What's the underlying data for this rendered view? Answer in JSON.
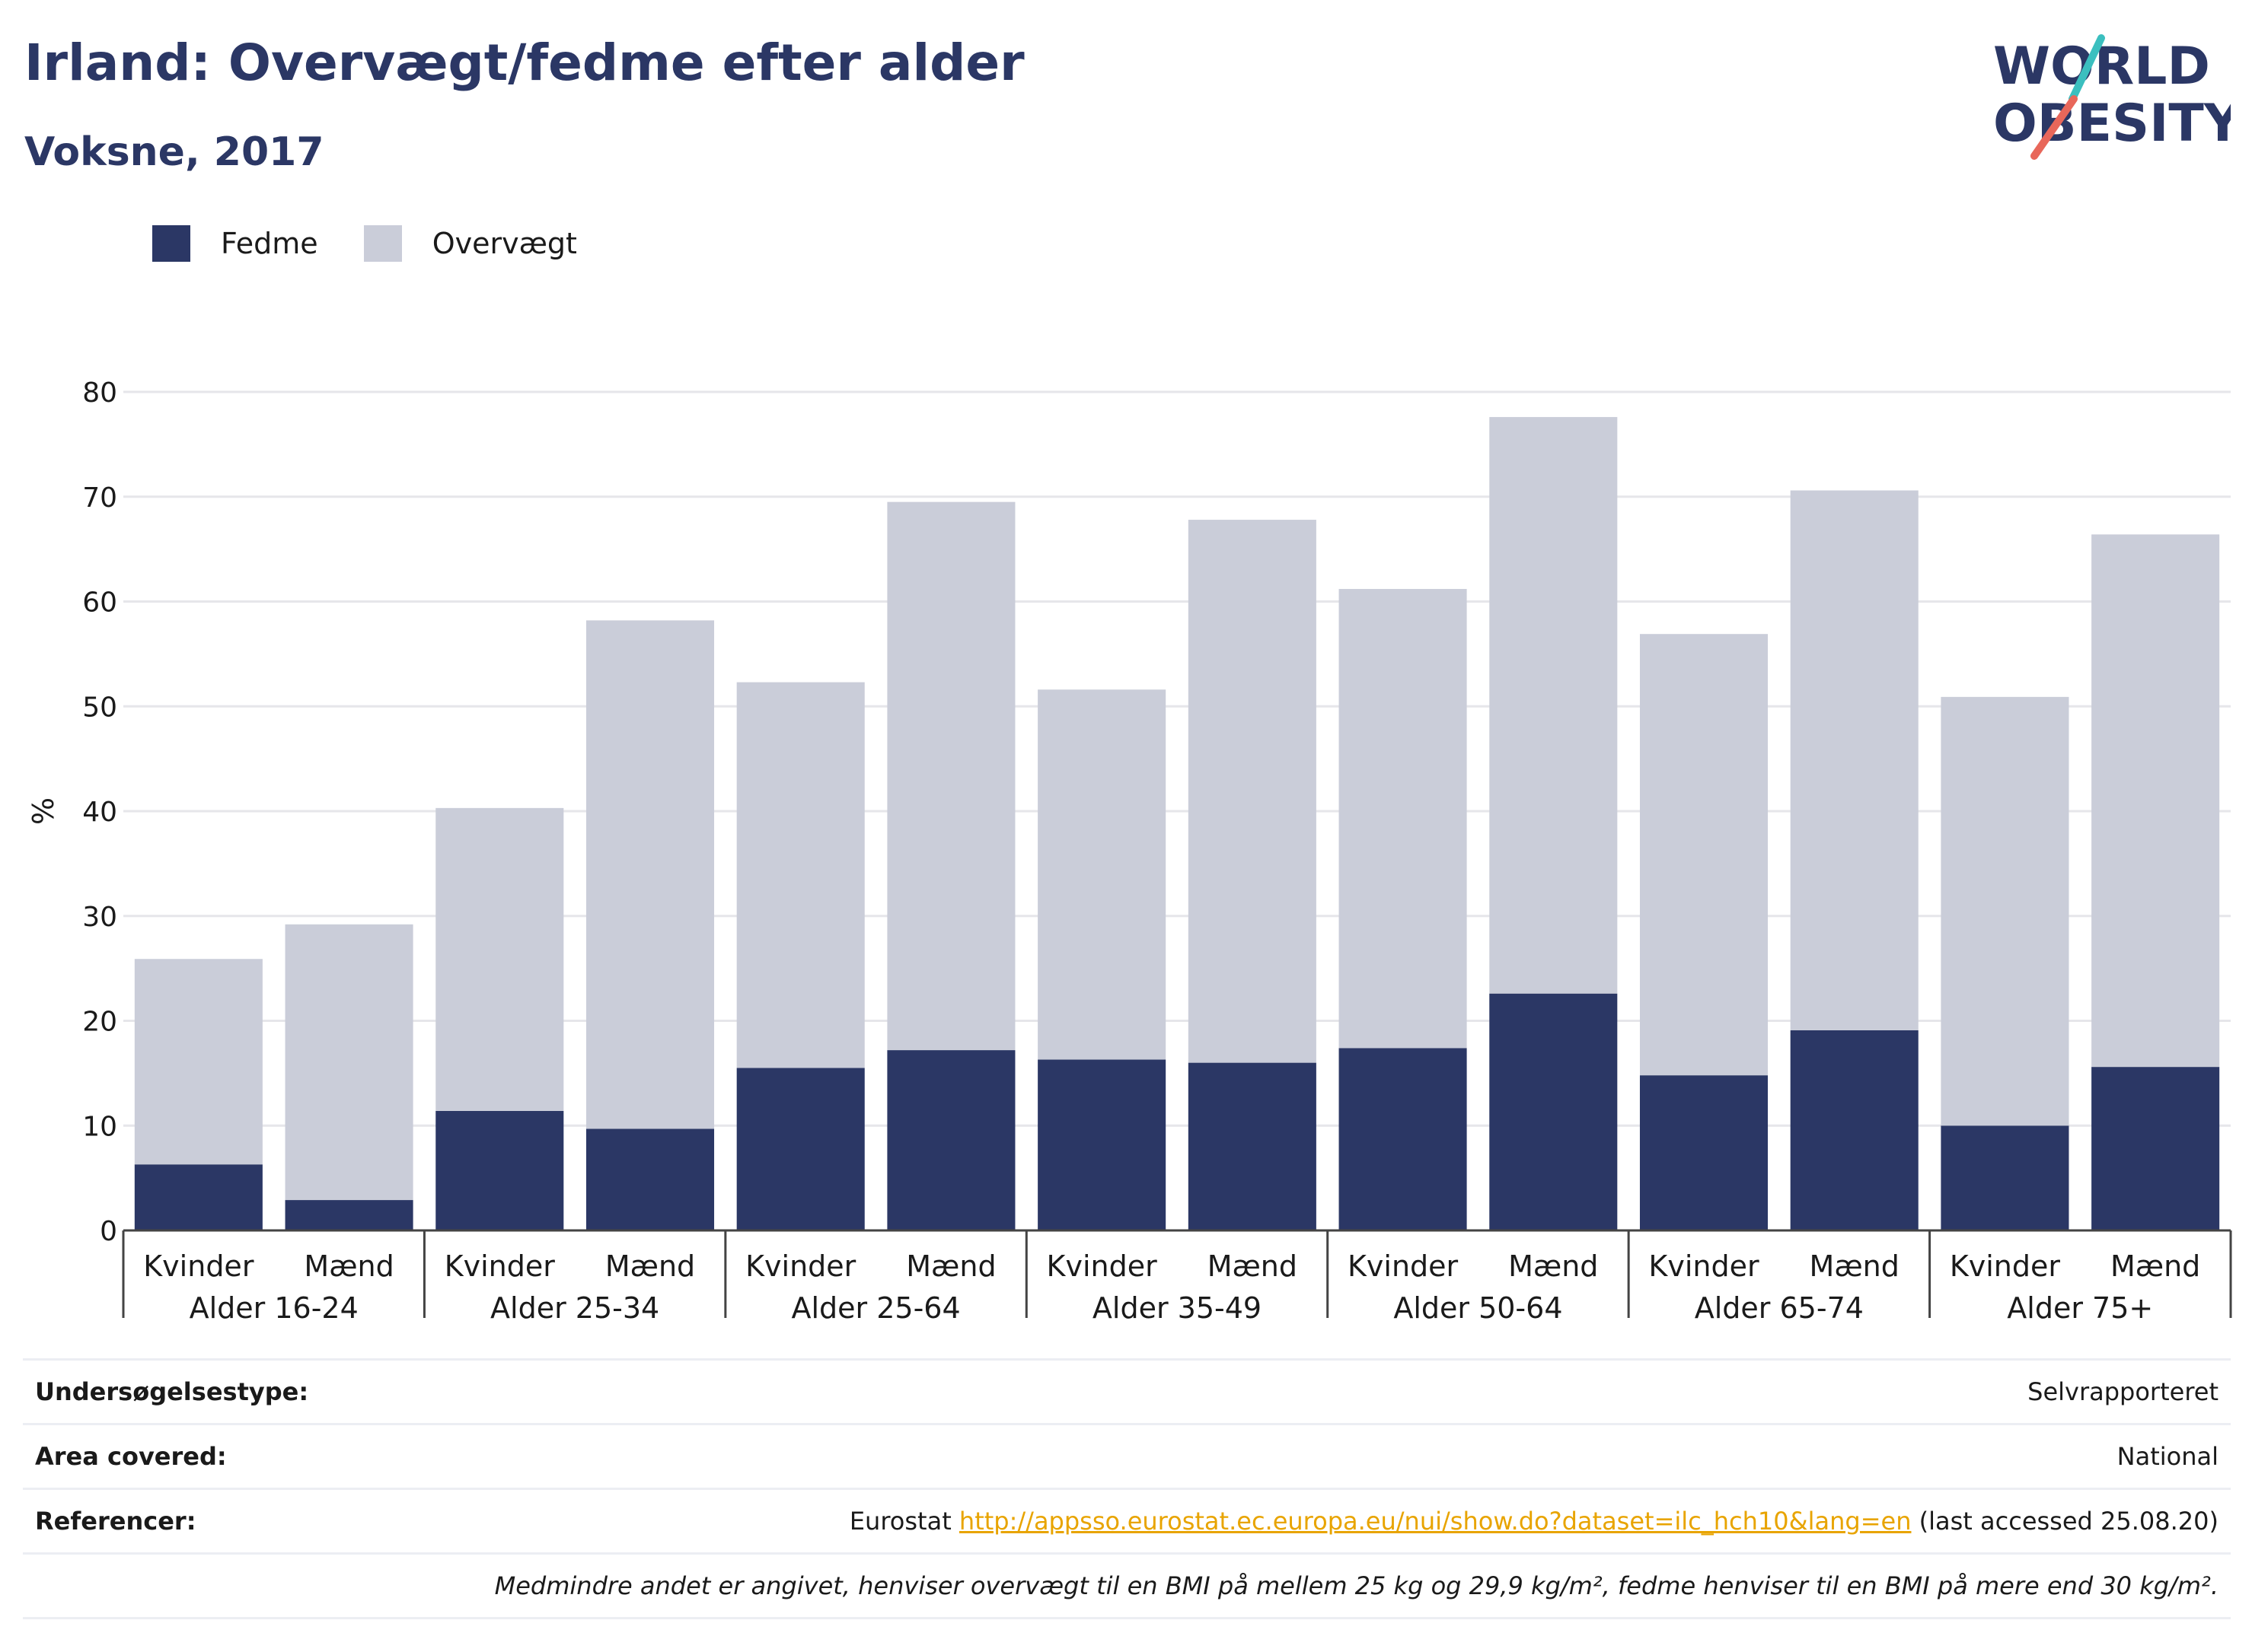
{
  "header": {
    "title": "Irland: Overvægt/fedme efter alder",
    "subtitle": "Voksne, 2017",
    "logo_line1": "WORLD",
    "logo_line2": "OBESITY"
  },
  "legend": {
    "items": [
      {
        "label": "Fedme",
        "color": "#2b3765"
      },
      {
        "label": "Overvægt",
        "color": "#cacdd9"
      }
    ]
  },
  "chart_data": {
    "type": "bar",
    "stacked": true,
    "title": "Irland: Overvægt/fedme efter alder",
    "subtitle": "Voksne, 2017",
    "ylabel": "%",
    "ylim": [
      0,
      80
    ],
    "yticks": [
      0,
      10,
      20,
      30,
      40,
      50,
      60,
      70,
      80
    ],
    "grid": true,
    "legend_position": "top-left",
    "groups": [
      "Alder 16-24",
      "Alder 25-34",
      "Alder 25-64",
      "Alder 35-49",
      "Alder 50-64",
      "Alder 65-74",
      "Alder 75+"
    ],
    "categories": [
      "Kvinder",
      "Mænd",
      "Kvinder",
      "Mænd",
      "Kvinder",
      "Mænd",
      "Kvinder",
      "Mænd",
      "Kvinder",
      "Mænd",
      "Kvinder",
      "Mænd",
      "Kvinder",
      "Mænd"
    ],
    "series": [
      {
        "name": "Fedme",
        "color": "#2b3765",
        "values": [
          6.3,
          2.9,
          11.4,
          9.7,
          15.5,
          17.2,
          16.3,
          16.0,
          17.4,
          22.6,
          14.8,
          19.1,
          10.0,
          15.6
        ]
      },
      {
        "name": "Overvægt",
        "color": "#cacdd9",
        "values": [
          19.6,
          26.3,
          28.9,
          48.5,
          36.8,
          52.3,
          35.3,
          51.8,
          43.8,
          55.0,
          42.1,
          51.5,
          40.9,
          50.8
        ]
      }
    ]
  },
  "info": {
    "survey_label": "Undersøgelsestype:",
    "survey_value": "Selvrapporteret",
    "area_label": "Area covered:",
    "area_value": "National",
    "ref_label": "Referencer:",
    "ref_prefix": "Eurostat ",
    "ref_link": "http://appsso.eurostat.ec.europa.eu/nui/show.do?dataset=ilc_hch10&lang=en",
    "ref_suffix": " (last accessed 25.08.20)",
    "note": "Medmindre andet er angivet, henviser overvægt til en BMI på mellem 25 kg og 29,9 kg/m², fedme henviser til en BMI på mere end 30 kg/m²."
  }
}
